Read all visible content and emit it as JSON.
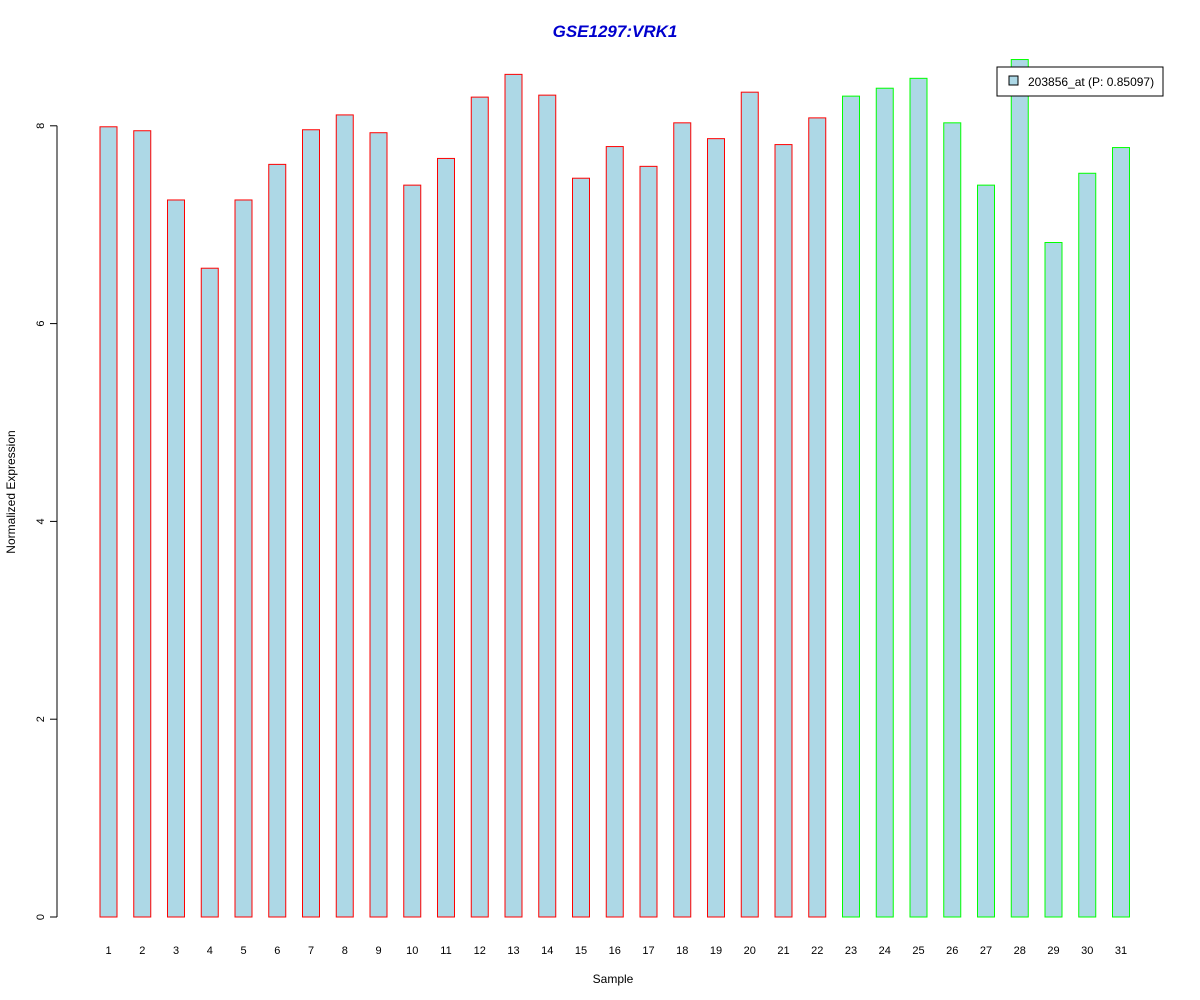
{
  "chart_data": {
    "type": "bar",
    "title": "GSE1297:VRK1",
    "xlabel": "Sample",
    "ylabel": "Normalized Expression",
    "ylim": [
      0,
      8.7
    ],
    "yticks": [
      0,
      2,
      4,
      6,
      8
    ],
    "categories": [
      "1",
      "2",
      "3",
      "4",
      "5",
      "6",
      "7",
      "8",
      "9",
      "10",
      "11",
      "12",
      "13",
      "14",
      "15",
      "16",
      "17",
      "18",
      "19",
      "20",
      "21",
      "22",
      "23",
      "24",
      "25",
      "26",
      "27",
      "28",
      "29",
      "30",
      "31"
    ],
    "values": [
      7.99,
      7.95,
      7.25,
      6.56,
      7.25,
      7.61,
      7.96,
      8.11,
      7.93,
      7.4,
      7.67,
      8.29,
      8.52,
      8.31,
      7.47,
      7.79,
      7.59,
      8.03,
      7.87,
      8.34,
      7.81,
      8.08,
      8.3,
      8.38,
      8.48,
      8.03,
      7.4,
      8.67,
      6.82,
      7.52,
      7.78
    ],
    "series": [
      {
        "name": "203856_at (P: 0.85097)",
        "values": [
          7.99,
          7.95,
          7.25,
          6.56,
          7.25,
          7.61,
          7.96,
          8.11,
          7.93,
          7.4,
          7.67,
          8.29,
          8.52,
          8.31,
          7.47,
          7.79,
          7.59,
          8.03,
          7.87,
          8.34,
          7.81,
          8.08,
          8.3,
          8.38,
          8.48,
          8.03,
          7.4,
          8.67,
          6.82,
          7.52,
          7.78
        ]
      }
    ],
    "groups": [
      "red",
      "red",
      "red",
      "red",
      "red",
      "red",
      "red",
      "red",
      "red",
      "red",
      "red",
      "red",
      "red",
      "red",
      "red",
      "red",
      "red",
      "red",
      "red",
      "red",
      "red",
      "red",
      "green",
      "green",
      "green",
      "green",
      "green",
      "green",
      "green",
      "green",
      "green"
    ],
    "legend": {
      "label": "203856_at (P: 0.85097)",
      "position": "top-right"
    },
    "grid": false,
    "colors": {
      "fill": "#add8e6",
      "red": "#ff0000",
      "green": "#00ff00",
      "title": "#0000cd",
      "axis": "#000000"
    }
  }
}
